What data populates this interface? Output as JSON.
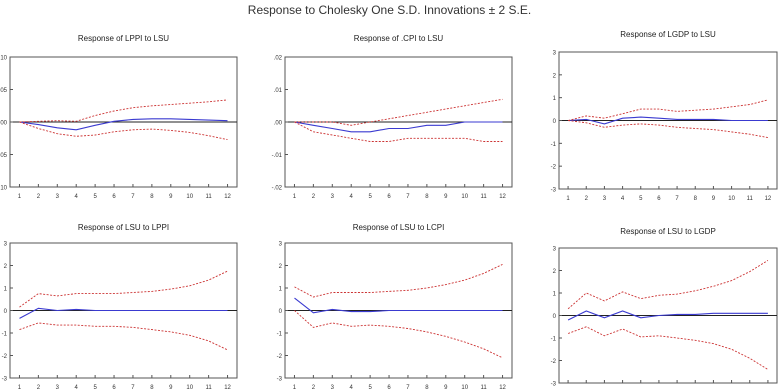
{
  "figure_title": "Response to Cholesky One S.D. Innovations ± 2 S.E.",
  "colors": {
    "response": "#3a3ad0",
    "band": "#cc3333",
    "axis": "#555555",
    "zero": "#222222"
  },
  "chart_data": [
    {
      "type": "line",
      "title": "Response of LPPI to LSU",
      "x": [
        1,
        2,
        3,
        4,
        5,
        6,
        7,
        8,
        9,
        10,
        11,
        12
      ],
      "ylim": [
        -0.1,
        0.1
      ],
      "yticks": [
        ".10",
        ".05",
        ".00",
        "-.05",
        "-.10"
      ],
      "series": [
        {
          "values": [
            0.0,
            -0.004,
            -0.009,
            -0.012,
            -0.005,
            0.001,
            0.004,
            0.005,
            0.005,
            0.004,
            0.003,
            0.002
          ]
        },
        {
          "values": [
            0.0,
            0.001,
            0.002,
            0.001,
            0.01,
            0.017,
            0.022,
            0.025,
            0.027,
            0.029,
            0.031,
            0.034
          ]
        },
        {
          "values": [
            0.0,
            -0.01,
            -0.018,
            -0.022,
            -0.02,
            -0.015,
            -0.012,
            -0.011,
            -0.013,
            -0.016,
            -0.021,
            -0.027
          ]
        }
      ]
    },
    {
      "type": "line",
      "title": "Response of .CPI to LSU",
      "x": [
        1,
        2,
        3,
        4,
        5,
        6,
        7,
        8,
        9,
        10,
        11,
        12
      ],
      "ylim": [
        -0.02,
        0.02
      ],
      "yticks": [
        ".02",
        ".01",
        ".00",
        "-.01",
        "-.02"
      ],
      "series": [
        {
          "values": [
            0.0,
            -0.001,
            -0.002,
            -0.003,
            -0.003,
            -0.002,
            -0.002,
            -0.001,
            -0.001,
            0.0,
            0.0,
            0.0
          ]
        },
        {
          "values": [
            0.0,
            0.0,
            0.0,
            -0.001,
            0.0,
            0.001,
            0.002,
            0.003,
            0.004,
            0.005,
            0.006,
            0.007
          ]
        },
        {
          "values": [
            0.0,
            -0.003,
            -0.004,
            -0.005,
            -0.006,
            -0.006,
            -0.005,
            -0.005,
            -0.005,
            -0.005,
            -0.006,
            -0.006
          ]
        }
      ]
    },
    {
      "type": "line",
      "title": "Response of LGDP to LSU",
      "x": [
        1,
        2,
        3,
        4,
        5,
        6,
        7,
        8,
        9,
        10,
        11,
        12
      ],
      "ylim": [
        -3,
        3
      ],
      "yticks": [
        "3",
        "2",
        "1",
        "0",
        "-1",
        "-2",
        "-3"
      ],
      "series": [
        {
          "values": [
            0.0,
            0.05,
            -0.15,
            0.1,
            0.15,
            0.1,
            0.05,
            0.05,
            0.05,
            0.0,
            0.0,
            0.0
          ]
        },
        {
          "values": [
            0.0,
            0.2,
            0.1,
            0.3,
            0.5,
            0.5,
            0.4,
            0.45,
            0.5,
            0.6,
            0.7,
            0.9
          ]
        },
        {
          "values": [
            0.0,
            -0.1,
            -0.3,
            -0.2,
            -0.15,
            -0.2,
            -0.3,
            -0.35,
            -0.4,
            -0.5,
            -0.6,
            -0.75
          ]
        }
      ]
    },
    {
      "type": "line",
      "title": "Response of LSU to LPPI",
      "x": [
        1,
        2,
        3,
        4,
        5,
        6,
        7,
        8,
        9,
        10,
        11,
        12
      ],
      "ylim": [
        -3,
        3
      ],
      "yticks": [
        "3",
        "2",
        "1",
        "0",
        "-1",
        "-2",
        "-3"
      ],
      "series": [
        {
          "values": [
            -0.35,
            0.1,
            0.0,
            0.05,
            0.0,
            0.0,
            0.0,
            0.0,
            0.0,
            0.0,
            0.0,
            0.0
          ]
        },
        {
          "values": [
            0.15,
            0.75,
            0.65,
            0.75,
            0.75,
            0.75,
            0.8,
            0.85,
            0.95,
            1.1,
            1.35,
            1.75
          ]
        },
        {
          "values": [
            -0.85,
            -0.55,
            -0.65,
            -0.65,
            -0.7,
            -0.7,
            -0.75,
            -0.85,
            -0.95,
            -1.1,
            -1.35,
            -1.75
          ]
        }
      ]
    },
    {
      "type": "line",
      "title": "Response of LSU to LCPI",
      "x": [
        1,
        2,
        3,
        4,
        5,
        6,
        7,
        8,
        9,
        10,
        11,
        12
      ],
      "ylim": [
        -3,
        3
      ],
      "yticks": [
        "3",
        "2",
        "1",
        "0",
        "-1",
        "-2",
        "-3"
      ],
      "series": [
        {
          "values": [
            0.55,
            -0.1,
            0.05,
            -0.05,
            -0.05,
            0.0,
            0.0,
            0.0,
            0.0,
            0.0,
            0.0,
            0.0
          ]
        },
        {
          "values": [
            1.05,
            0.6,
            0.8,
            0.8,
            0.8,
            0.85,
            0.9,
            1.0,
            1.15,
            1.35,
            1.65,
            2.05
          ]
        },
        {
          "values": [
            0.0,
            -0.75,
            -0.55,
            -0.7,
            -0.65,
            -0.7,
            -0.8,
            -0.95,
            -1.15,
            -1.4,
            -1.7,
            -2.1
          ]
        }
      ]
    },
    {
      "type": "line",
      "title": "Response of LSU to LGDP",
      "x": [
        1,
        2,
        3,
        4,
        5,
        6,
        7,
        8,
        9,
        10,
        11,
        12
      ],
      "ylim": [
        -3,
        3
      ],
      "yticks": [
        "3",
        "2",
        "1",
        "0",
        "-1",
        "-2",
        "-3"
      ],
      "series": [
        {
          "values": [
            -0.2,
            0.2,
            -0.1,
            0.2,
            -0.1,
            0.0,
            0.05,
            0.05,
            0.1,
            0.1,
            0.1,
            0.1
          ]
        },
        {
          "values": [
            0.3,
            1.0,
            0.65,
            1.05,
            0.75,
            0.9,
            0.95,
            1.1,
            1.3,
            1.55,
            1.95,
            2.45
          ]
        },
        {
          "values": [
            -0.8,
            -0.5,
            -0.9,
            -0.6,
            -0.95,
            -0.9,
            -1.0,
            -1.1,
            -1.25,
            -1.5,
            -1.9,
            -2.4
          ]
        }
      ]
    }
  ]
}
